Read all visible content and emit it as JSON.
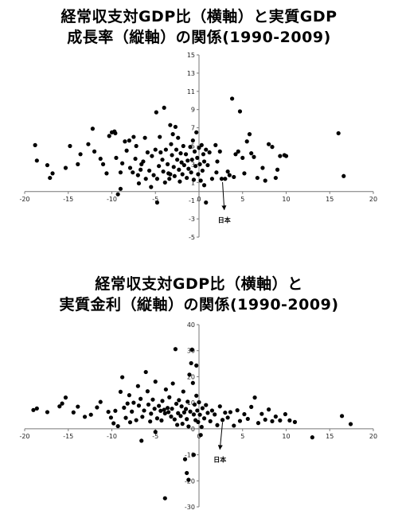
{
  "chart_data": [
    {
      "type": "scatter",
      "title_lines": [
        "経常収支対GDP比（横軸）と実質GDP",
        "成長率（縦軸）の関係(1990-2009)"
      ],
      "xlabel": "",
      "ylabel": "",
      "xlim": [
        -20,
        20
      ],
      "ylim": [
        -5,
        15
      ],
      "xticks": [
        -20,
        -15,
        -10,
        -5,
        0,
        5,
        10,
        15,
        20
      ],
      "yticks": [
        -5,
        -3,
        -1,
        1,
        3,
        5,
        7,
        9,
        11,
        13,
        15
      ],
      "annotation": {
        "label": "日本",
        "point": [
          2.7,
          1.3
        ],
        "text_at": [
          2.9,
          -3.4
        ]
      },
      "points": [
        [
          -18.8,
          5.1
        ],
        [
          -18.6,
          3.4
        ],
        [
          -17.4,
          2.9
        ],
        [
          -17.1,
          1.5
        ],
        [
          -16.8,
          2.0
        ],
        [
          -15.3,
          2.6
        ],
        [
          -14.8,
          5.0
        ],
        [
          -13.9,
          3.0
        ],
        [
          -13.6,
          4.1
        ],
        [
          -12.7,
          5.2
        ],
        [
          -12.2,
          6.9
        ],
        [
          -12.0,
          4.4
        ],
        [
          -11.3,
          3.6
        ],
        [
          -11.0,
          3.0
        ],
        [
          -10.6,
          2.0
        ],
        [
          -10.3,
          6.1
        ],
        [
          -10.0,
          6.5
        ],
        [
          -9.7,
          6.6
        ],
        [
          -9.6,
          6.4
        ],
        [
          -9.5,
          3.7
        ],
        [
          -9.0,
          2.1
        ],
        [
          -9.0,
          0.3
        ],
        [
          -8.8,
          3.1
        ],
        [
          -8.5,
          5.5
        ],
        [
          -8.3,
          4.5
        ],
        [
          -8.0,
          5.6
        ],
        [
          -7.9,
          2.6
        ],
        [
          -7.6,
          2.1
        ],
        [
          -7.5,
          6.0
        ],
        [
          -7.3,
          3.6
        ],
        [
          -7.2,
          5.0
        ],
        [
          -7.0,
          1.8
        ],
        [
          -6.9,
          0.9
        ],
        [
          -6.7,
          2.4
        ],
        [
          -6.4,
          3.3
        ],
        [
          -6.2,
          5.9
        ],
        [
          -6.1,
          1.4
        ],
        [
          -5.9,
          4.3
        ],
        [
          -5.7,
          2.3
        ],
        [
          -5.5,
          0.5
        ],
        [
          -5.4,
          3.9
        ],
        [
          -5.2,
          1.8
        ],
        [
          -5.0,
          4.6
        ],
        [
          -4.9,
          8.7
        ],
        [
          -4.8,
          1.4
        ],
        [
          -4.6,
          2.8
        ],
        [
          -4.5,
          6.0
        ],
        [
          -4.4,
          4.3
        ],
        [
          -4.2,
          3.5
        ],
        [
          -4.1,
          2.2
        ],
        [
          -4.0,
          9.2
        ],
        [
          -3.9,
          1.0
        ],
        [
          -3.8,
          4.6
        ],
        [
          -3.6,
          3.0
        ],
        [
          -3.5,
          2.0
        ],
        [
          -3.4,
          1.4
        ],
        [
          -3.3,
          7.3
        ],
        [
          -3.2,
          5.2
        ],
        [
          -3.1,
          4.0
        ],
        [
          -3.0,
          6.3
        ],
        [
          -2.9,
          2.7
        ],
        [
          -2.8,
          1.7
        ],
        [
          -2.7,
          7.1
        ],
        [
          -2.6,
          4.6
        ],
        [
          -2.5,
          3.5
        ],
        [
          -2.4,
          5.9
        ],
        [
          -2.3,
          2.4
        ],
        [
          -2.2,
          1.1
        ],
        [
          -2.1,
          4.2
        ],
        [
          -2.0,
          3.2
        ],
        [
          -1.9,
          1.9
        ],
        [
          -1.8,
          5.0
        ],
        [
          -1.7,
          2.9
        ],
        [
          -1.5,
          4.1
        ],
        [
          -1.4,
          1.5
        ],
        [
          -1.3,
          3.4
        ],
        [
          -1.2,
          2.5
        ],
        [
          -1.0,
          4.9
        ],
        [
          -0.9,
          2.1
        ],
        [
          -0.8,
          3.5
        ],
        [
          -0.7,
          5.6
        ],
        [
          -0.6,
          1.3
        ],
        [
          -0.5,
          4.4
        ],
        [
          -0.4,
          2.8
        ],
        [
          -0.3,
          6.5
        ],
        [
          -0.2,
          3.7
        ],
        [
          -0.1,
          1.9
        ],
        [
          0.0,
          4.8
        ],
        [
          0.1,
          3.0
        ],
        [
          0.2,
          1.2
        ],
        [
          0.3,
          5.1
        ],
        [
          0.4,
          2.3
        ],
        [
          0.5,
          4.1
        ],
        [
          0.6,
          3.3
        ],
        [
          0.8,
          4.6
        ],
        [
          1.0,
          2.9
        ],
        [
          1.2,
          4.3
        ],
        [
          1.5,
          1.4
        ],
        [
          1.9,
          5.1
        ],
        [
          2.0,
          2.1
        ],
        [
          2.1,
          3.3
        ],
        [
          2.4,
          4.4
        ],
        [
          2.6,
          1.4
        ],
        [
          3.0,
          1.4
        ],
        [
          3.3,
          2.2
        ],
        [
          3.5,
          1.8
        ],
        [
          3.8,
          10.2
        ],
        [
          4.0,
          1.6
        ],
        [
          4.2,
          4.1
        ],
        [
          4.5,
          4.4
        ],
        [
          4.7,
          8.8
        ],
        [
          5.0,
          3.7
        ],
        [
          5.2,
          2.0
        ],
        [
          5.5,
          5.5
        ],
        [
          5.8,
          6.3
        ],
        [
          6.0,
          4.2
        ],
        [
          6.3,
          3.8
        ],
        [
          6.7,
          1.5
        ],
        [
          7.3,
          2.6
        ],
        [
          7.6,
          1.2
        ],
        [
          8.0,
          5.2
        ],
        [
          8.4,
          4.9
        ],
        [
          8.8,
          1.5
        ],
        [
          9.0,
          2.4
        ],
        [
          9.3,
          3.9
        ],
        [
          9.8,
          4.0
        ],
        [
          10.0,
          3.9
        ],
        [
          16.0,
          6.4
        ],
        [
          16.6,
          1.7
        ],
        [
          0.6,
          0.7
        ],
        [
          0.8,
          -1.2
        ],
        [
          -9.3,
          -0.3
        ],
        [
          -4.8,
          -1.2
        ],
        [
          -6.6,
          3.0
        ],
        [
          -3.3,
          1.9
        ]
      ]
    },
    {
      "type": "scatter",
      "title_lines": [
        "経常収支対GDP比（横軸）と",
        "実質金利（縦軸）の関係(1990-2009)"
      ],
      "xlabel": "",
      "ylabel": "",
      "xlim": [
        -20,
        20
      ],
      "ylim": [
        -30,
        40
      ],
      "xticks": [
        -20,
        -15,
        -10,
        -5,
        0,
        5,
        10,
        15,
        20
      ],
      "yticks": [
        -30,
        -20,
        -10,
        0,
        10,
        20,
        30,
        40
      ],
      "annotation": {
        "label": "日本",
        "point": [
          2.7,
          3.4
        ],
        "text_at": [
          2.4,
          -12.8
        ]
      },
      "points": [
        [
          -19.0,
          7.2
        ],
        [
          -18.6,
          7.8
        ],
        [
          -17.4,
          6.4
        ],
        [
          -16.0,
          8.6
        ],
        [
          -15.7,
          9.7
        ],
        [
          -15.3,
          12.0
        ],
        [
          -14.4,
          6.3
        ],
        [
          -13.9,
          8.5
        ],
        [
          -12.4,
          5.4
        ],
        [
          -11.3,
          10.3
        ],
        [
          -10.4,
          6.5
        ],
        [
          -10.1,
          4.3
        ],
        [
          -9.8,
          2.1
        ],
        [
          -9.6,
          6.9
        ],
        [
          -9.3,
          1.0
        ],
        [
          -9.0,
          14.2
        ],
        [
          -8.8,
          19.8
        ],
        [
          -8.6,
          8.1
        ],
        [
          -8.4,
          4.2
        ],
        [
          -8.0,
          12.9
        ],
        [
          -7.7,
          6.6
        ],
        [
          -7.5,
          10.0
        ],
        [
          -7.2,
          3.3
        ],
        [
          -7.0,
          16.4
        ],
        [
          -6.9,
          8.9
        ],
        [
          -6.7,
          11.5
        ],
        [
          -6.5,
          4.6
        ],
        [
          -6.3,
          7.0
        ],
        [
          -6.1,
          21.8
        ],
        [
          -5.9,
          14.4
        ],
        [
          -5.8,
          9.3
        ],
        [
          -5.6,
          2.8
        ],
        [
          -5.5,
          5.8
        ],
        [
          -5.3,
          11.2
        ],
        [
          -5.1,
          7.7
        ],
        [
          -5.0,
          18.1
        ],
        [
          -4.8,
          4.0
        ],
        [
          -4.6,
          8.8
        ],
        [
          -4.4,
          6.9
        ],
        [
          -4.3,
          3.2
        ],
        [
          -4.2,
          10.7
        ],
        [
          -4.0,
          7.3
        ],
        [
          -3.9,
          5.9
        ],
        [
          -3.8,
          15.1
        ],
        [
          -3.6,
          8.0
        ],
        [
          -3.5,
          6.4
        ],
        [
          -3.4,
          12.1
        ],
        [
          -3.2,
          4.7
        ],
        [
          -3.1,
          7.7
        ],
        [
          -3.0,
          17.4
        ],
        [
          -2.8,
          3.6
        ],
        [
          -2.7,
          30.6
        ],
        [
          -2.6,
          9.6
        ],
        [
          -2.4,
          6.0
        ],
        [
          -2.3,
          11.0
        ],
        [
          -2.1,
          4.9
        ],
        [
          -2.0,
          8.6
        ],
        [
          -1.9,
          1.9
        ],
        [
          -1.8,
          14.3
        ],
        [
          -1.7,
          6.3
        ],
        [
          -1.5,
          7.6
        ],
        [
          -1.4,
          3.7
        ],
        [
          -1.3,
          10.4
        ],
        [
          -1.2,
          0.9
        ],
        [
          -1.0,
          6.6
        ],
        [
          -0.9,
          25.2
        ],
        [
          -0.8,
          30.4
        ],
        [
          -0.7,
          17.6
        ],
        [
          -0.6,
          5.5
        ],
        [
          -0.5,
          9.3
        ],
        [
          -0.4,
          3.3
        ],
        [
          -0.3,
          12.7
        ],
        [
          -0.2,
          7.0
        ],
        [
          -0.1,
          2.6
        ],
        [
          0.0,
          10.2
        ],
        [
          0.1,
          5.4
        ],
        [
          0.2,
          -2.4
        ],
        [
          0.4,
          7.9
        ],
        [
          0.6,
          4.0
        ],
        [
          0.8,
          9.1
        ],
        [
          1.0,
          6.1
        ],
        [
          1.3,
          2.9
        ],
        [
          1.5,
          7.0
        ],
        [
          1.8,
          5.5
        ],
        [
          2.1,
          1.4
        ],
        [
          2.4,
          8.6
        ],
        [
          2.7,
          3.4
        ],
        [
          3.0,
          6.2
        ],
        [
          3.3,
          4.3
        ],
        [
          3.6,
          6.4
        ],
        [
          4.0,
          1.2
        ],
        [
          4.4,
          7.1
        ],
        [
          4.7,
          3.0
        ],
        [
          5.2,
          5.6
        ],
        [
          5.6,
          3.8
        ],
        [
          6.0,
          8.4
        ],
        [
          6.4,
          12.0
        ],
        [
          6.8,
          2.2
        ],
        [
          7.2,
          5.7
        ],
        [
          7.6,
          3.5
        ],
        [
          8.0,
          7.4
        ],
        [
          8.4,
          2.9
        ],
        [
          8.8,
          4.7
        ],
        [
          9.3,
          3.2
        ],
        [
          9.9,
          5.6
        ],
        [
          10.4,
          3.2
        ],
        [
          11.0,
          2.6
        ],
        [
          13.0,
          -3.3
        ],
        [
          16.4,
          4.9
        ],
        [
          17.4,
          1.8
        ],
        [
          -11.7,
          8.2
        ],
        [
          -13.1,
          4.6
        ],
        [
          -7.9,
          2.5
        ],
        [
          -6.6,
          -4.6
        ],
        [
          -5.0,
          -1.2
        ],
        [
          -1.6,
          -11.7
        ],
        [
          -1.2,
          -19.6
        ],
        [
          -1.4,
          -17.0
        ],
        [
          -3.9,
          -26.7
        ],
        [
          -0.6,
          -10.0
        ],
        [
          -2.5,
          1.5
        ],
        [
          -0.3,
          24.3
        ],
        [
          -1.1,
          20.8
        ],
        [
          0.3,
          0.7
        ],
        [
          -8.2,
          9.7
        ]
      ]
    }
  ]
}
